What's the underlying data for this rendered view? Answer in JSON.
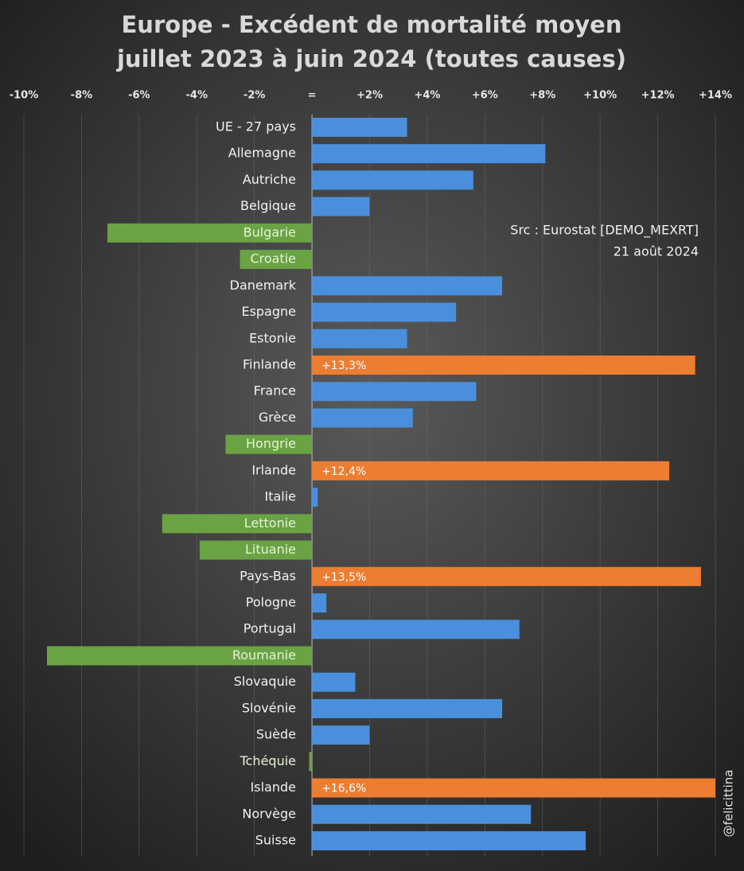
{
  "chart_data": {
    "type": "barh",
    "title": "Europe - Excédent de mortalité moyen",
    "subtitle": "juillet 2023 à juin 2024 (toutes causes)",
    "annotations": [
      "Src : Eurostat [DEMO_MEXRT]",
      "21 août 2024",
      "@felicittina"
    ],
    "categories": [
      "UE - 27 pays",
      "Allemagne",
      "Autriche",
      "Belgique",
      "Bulgarie",
      "Croatie",
      "Danemark",
      "Espagne",
      "Estonie",
      "Finlande",
      "France",
      "Grèce",
      "Hongrie",
      "Irlande",
      "Italie",
      "Lettonie",
      "Lituanie",
      "Pays-Bas",
      "Pologne",
      "Portugal",
      "Roumanie",
      "Slovaquie",
      "Slovénie",
      "Suède",
      "Tchéquie",
      "Islande",
      "Norvège",
      "Suisse"
    ],
    "values": [
      3.3,
      8.1,
      5.6,
      2.0,
      -7.1,
      -2.5,
      6.6,
      5.0,
      3.3,
      13.3,
      5.7,
      3.5,
      -3.0,
      12.4,
      0.2,
      -5.2,
      -3.9,
      13.5,
      0.5,
      7.2,
      -9.2,
      1.5,
      6.6,
      2.0,
      -0.1,
      16.6,
      7.6,
      9.5
    ],
    "value_labels": [
      null,
      null,
      null,
      null,
      null,
      null,
      null,
      null,
      null,
      "+13,3%",
      null,
      null,
      null,
      "+12,4%",
      null,
      null,
      null,
      "+13,5%",
      null,
      null,
      null,
      null,
      null,
      null,
      null,
      "+16,6%",
      null,
      null
    ],
    "colors": [
      "#4a8fdc",
      "#4a8fdc",
      "#4a8fdc",
      "#4a8fdc",
      "#6aa343",
      "#6aa343",
      "#4a8fdc",
      "#4a8fdc",
      "#4a8fdc",
      "#ed7d31",
      "#4a8fdc",
      "#4a8fdc",
      "#6aa343",
      "#ed7d31",
      "#4a8fdc",
      "#6aa343",
      "#6aa343",
      "#ed7d31",
      "#4a8fdc",
      "#4a8fdc",
      "#6aa343",
      "#4a8fdc",
      "#4a8fdc",
      "#4a8fdc",
      "#6aa343",
      "#ed7d31",
      "#4a8fdc",
      "#4a8fdc"
    ],
    "xlim": [
      -10,
      14
    ],
    "xticks": [
      {
        "value": -10,
        "label": "-10%"
      },
      {
        "value": -8,
        "label": "-8%"
      },
      {
        "value": -6,
        "label": "-6%"
      },
      {
        "value": -4,
        "label": "-4%"
      },
      {
        "value": -2,
        "label": "-2%"
      },
      {
        "value": 0,
        "label": "="
      },
      {
        "value": 2,
        "label": "+2%"
      },
      {
        "value": 4,
        "label": "+4%"
      },
      {
        "value": 6,
        "label": "+6%"
      },
      {
        "value": 8,
        "label": "+8%"
      },
      {
        "value": 10,
        "label": "+10%"
      },
      {
        "value": 12,
        "label": "+12%"
      },
      {
        "value": 14,
        "label": "+14%"
      }
    ],
    "grid": true
  }
}
